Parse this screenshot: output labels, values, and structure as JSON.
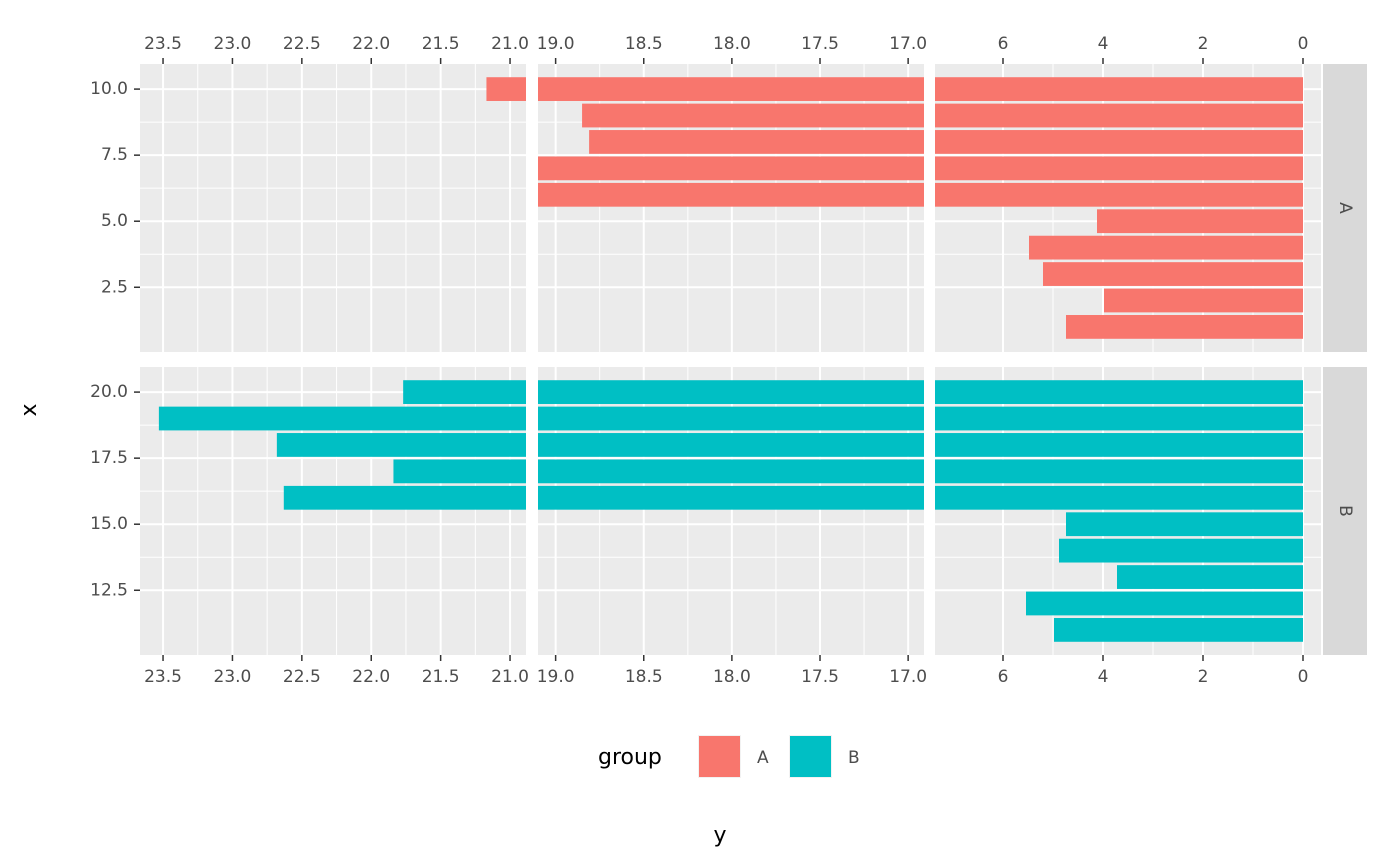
{
  "chart_data": {
    "type": "bar",
    "orientation": "horizontal",
    "x_label": "x",
    "y_label": "y",
    "grid": true,
    "legend": {
      "title": "group",
      "position": "bottom"
    },
    "value_segments": [
      {
        "xlim": [
          23.666,
          20.885
        ],
        "xticks": [
          23.5,
          {
            "value": 23.0,
            "label": "23.0"
          },
          22.5,
          {
            "value": 22.0,
            "label": "22.0"
          },
          21.5,
          {
            "value": 21.0,
            "label": "21.0"
          }
        ]
      },
      {
        "xlim": [
          19.1,
          16.91
        ],
        "xticks": [
          {
            "value": 19.0,
            "label": "19.0"
          },
          18.5,
          {
            "value": 18.0,
            "label": "18.0"
          },
          17.5,
          {
            "value": 17.0,
            "label": "17.0"
          }
        ]
      },
      {
        "xlim": [
          7.36,
          -0.36
        ],
        "xticks": [
          6,
          4,
          2,
          0
        ]
      }
    ],
    "series": [
      {
        "name": "A",
        "color": "#F8766D",
        "x": [
          1,
          2,
          3,
          4,
          5,
          6,
          7,
          8,
          9,
          10
        ],
        "values": [
          4.74,
          3.98,
          5.2,
          5.48,
          4.12,
          20,
          20,
          18.81,
          18.85,
          21.17
        ],
        "ylim": [
          0.05,
          10.95
        ],
        "yticks": [
          2.5,
          {
            "value": 5.0,
            "label": "5.0"
          },
          7.5,
          {
            "value": 10.0,
            "label": "10.0"
          }
        ]
      },
      {
        "name": "B",
        "color": "#00BFC4",
        "x": [
          11,
          12,
          13,
          14,
          15,
          16,
          17,
          18,
          19,
          20
        ],
        "values": [
          4.98,
          5.54,
          3.72,
          4.88,
          4.74,
          22.63,
          21.84,
          22.68,
          23.53,
          21.77
        ],
        "ylim": [
          10.05,
          20.95
        ],
        "yticks": [
          12.5,
          {
            "value": 15.0,
            "label": "15.0"
          },
          17.5,
          {
            "value": 20.0,
            "label": "20.0"
          }
        ]
      }
    ]
  }
}
